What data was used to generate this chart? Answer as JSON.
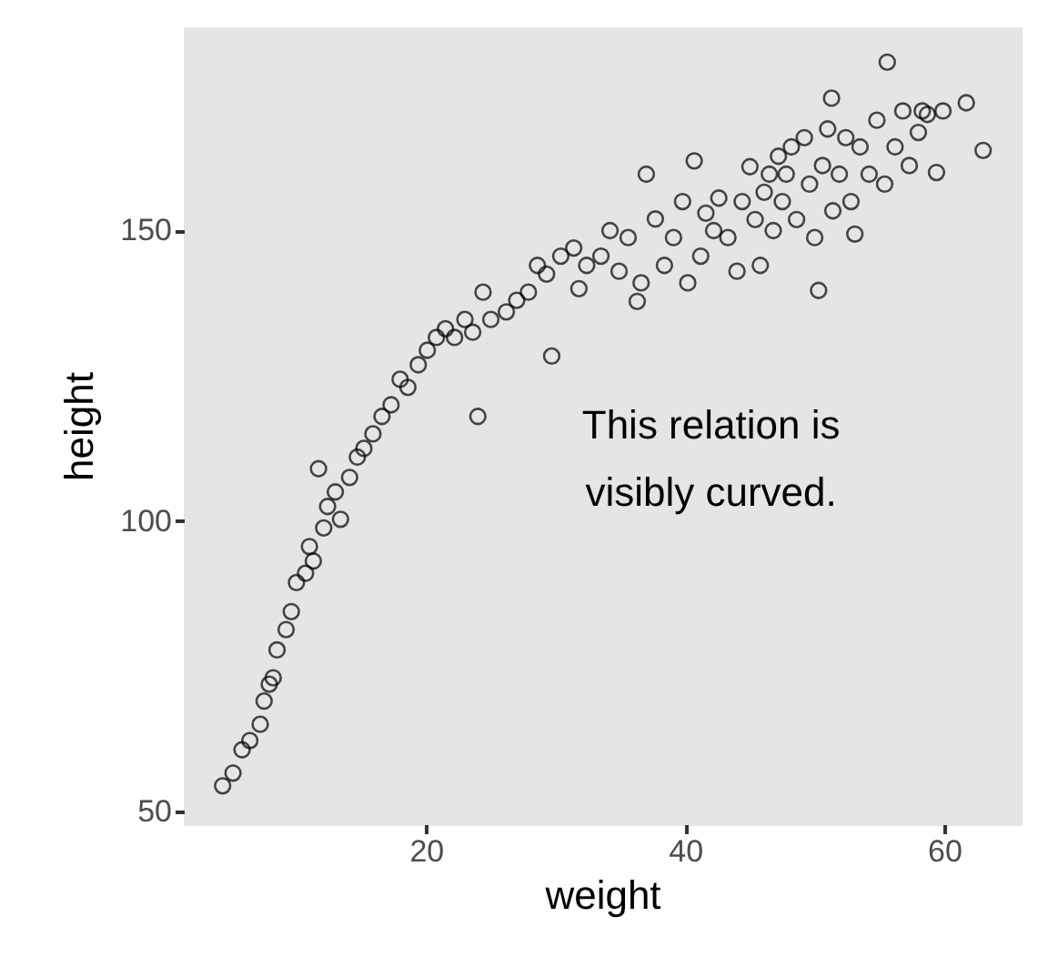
{
  "chart_data": {
    "type": "scatter",
    "xlabel": "weight",
    "ylabel": "height",
    "xlim": [
      1.3,
      65.9
    ],
    "ylim": [
      47.8,
      185
    ],
    "xticks": [
      20,
      40,
      60
    ],
    "yticks": [
      50,
      100,
      150
    ],
    "marker": "circle",
    "annotations": [
      "This relation is visibly curved."
    ],
    "series": [
      {
        "color": "#000000",
        "x": [
          4.3,
          5.1,
          5.8,
          6.4,
          7.2,
          7.5,
          7.9,
          8.2,
          8.5,
          9.2,
          9.6,
          10,
          10.7,
          11,
          11.3,
          11.7,
          12.1,
          12.4,
          13,
          13.4,
          14.1,
          14.7,
          15.2,
          15.9,
          16.6,
          17.3,
          18,
          18.6,
          19.4,
          20.1,
          20.8,
          21.5,
          22.2,
          23,
          23.6,
          24,
          24.4,
          25,
          26.2,
          27,
          27.9,
          28.6,
          29.3,
          29.7,
          30.4,
          31.4,
          31.8,
          32.4,
          33.5,
          34.2,
          34.9,
          35.6,
          36.3,
          36.6,
          37,
          37.7,
          38.4,
          39.1,
          39.8,
          40.2,
          40.7,
          41.2,
          41.6,
          42.2,
          42.6,
          43.3,
          44,
          44.4,
          45,
          45.4,
          45.8,
          46.1,
          46.5,
          46.8,
          47.2,
          47.5,
          47.8,
          48.2,
          48.6,
          49.2,
          49.6,
          50,
          50.3,
          50.6,
          51,
          51.3,
          51.4,
          51.9,
          52.4,
          52.8,
          53.1,
          53.5,
          54.2,
          54.8,
          55.4,
          55.6,
          56.2,
          56.8,
          57.3,
          58,
          58.3,
          58.7,
          59.4,
          59.9,
          61.7,
          63
        ],
        "values": [
          54.4,
          56.6,
          60.6,
          62.2,
          65,
          69,
          71.9,
          73,
          77.8,
          81.3,
          84.4,
          89.4,
          91,
          95.6,
          93.1,
          109,
          98.8,
          102.5,
          105,
          100.3,
          107.5,
          111,
          112.5,
          115,
          118,
          120,
          124.4,
          123,
          126.9,
          129.4,
          131.6,
          133.1,
          131.6,
          134.7,
          132.5,
          118,
          139.4,
          134.7,
          136,
          138,
          139.4,
          144,
          142.5,
          128.4,
          145.6,
          147,
          140,
          144,
          145.6,
          150,
          143,
          148.8,
          137.8,
          141,
          159.7,
          152,
          144,
          148.8,
          155,
          141,
          162,
          145.6,
          153,
          150,
          155.6,
          148.8,
          143,
          155,
          161,
          151.9,
          144,
          156.6,
          159.7,
          150,
          162.8,
          155,
          159.7,
          164.4,
          151.9,
          166,
          158,
          148.8,
          139.7,
          161.2,
          167.5,
          172.8,
          153.4,
          159.7,
          166,
          155,
          149.4,
          164.4,
          159.7,
          169,
          158,
          179,
          164.4,
          170.6,
          161.2,
          166.9,
          170.6,
          170,
          160,
          170.6,
          172,
          163.8
        ]
      }
    ]
  }
}
